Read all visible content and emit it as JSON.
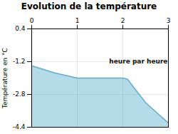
{
  "chart_data": {
    "type": "area",
    "title": "Evolution de la température",
    "ylabel": "Température en °C",
    "x": [
      0,
      0.5,
      1.0,
      1.5,
      2.0,
      2.1,
      2.5,
      3.0
    ],
    "values": [
      -1.4,
      -1.75,
      -2.0,
      -2.0,
      -2.0,
      -2.05,
      -3.2,
      -4.2
    ],
    "color": "#5ab0cc",
    "xlim": [
      0,
      3
    ],
    "xticks": [
      0,
      1,
      2,
      3
    ],
    "ylim": [
      -4.4,
      0.4
    ],
    "yticks": [
      0.4,
      -1.2,
      -2.8,
      -4.4
    ],
    "grid": true,
    "annotations": [
      {
        "text": "heure par heure",
        "x": 1.7,
        "y": -1.3
      }
    ]
  }
}
